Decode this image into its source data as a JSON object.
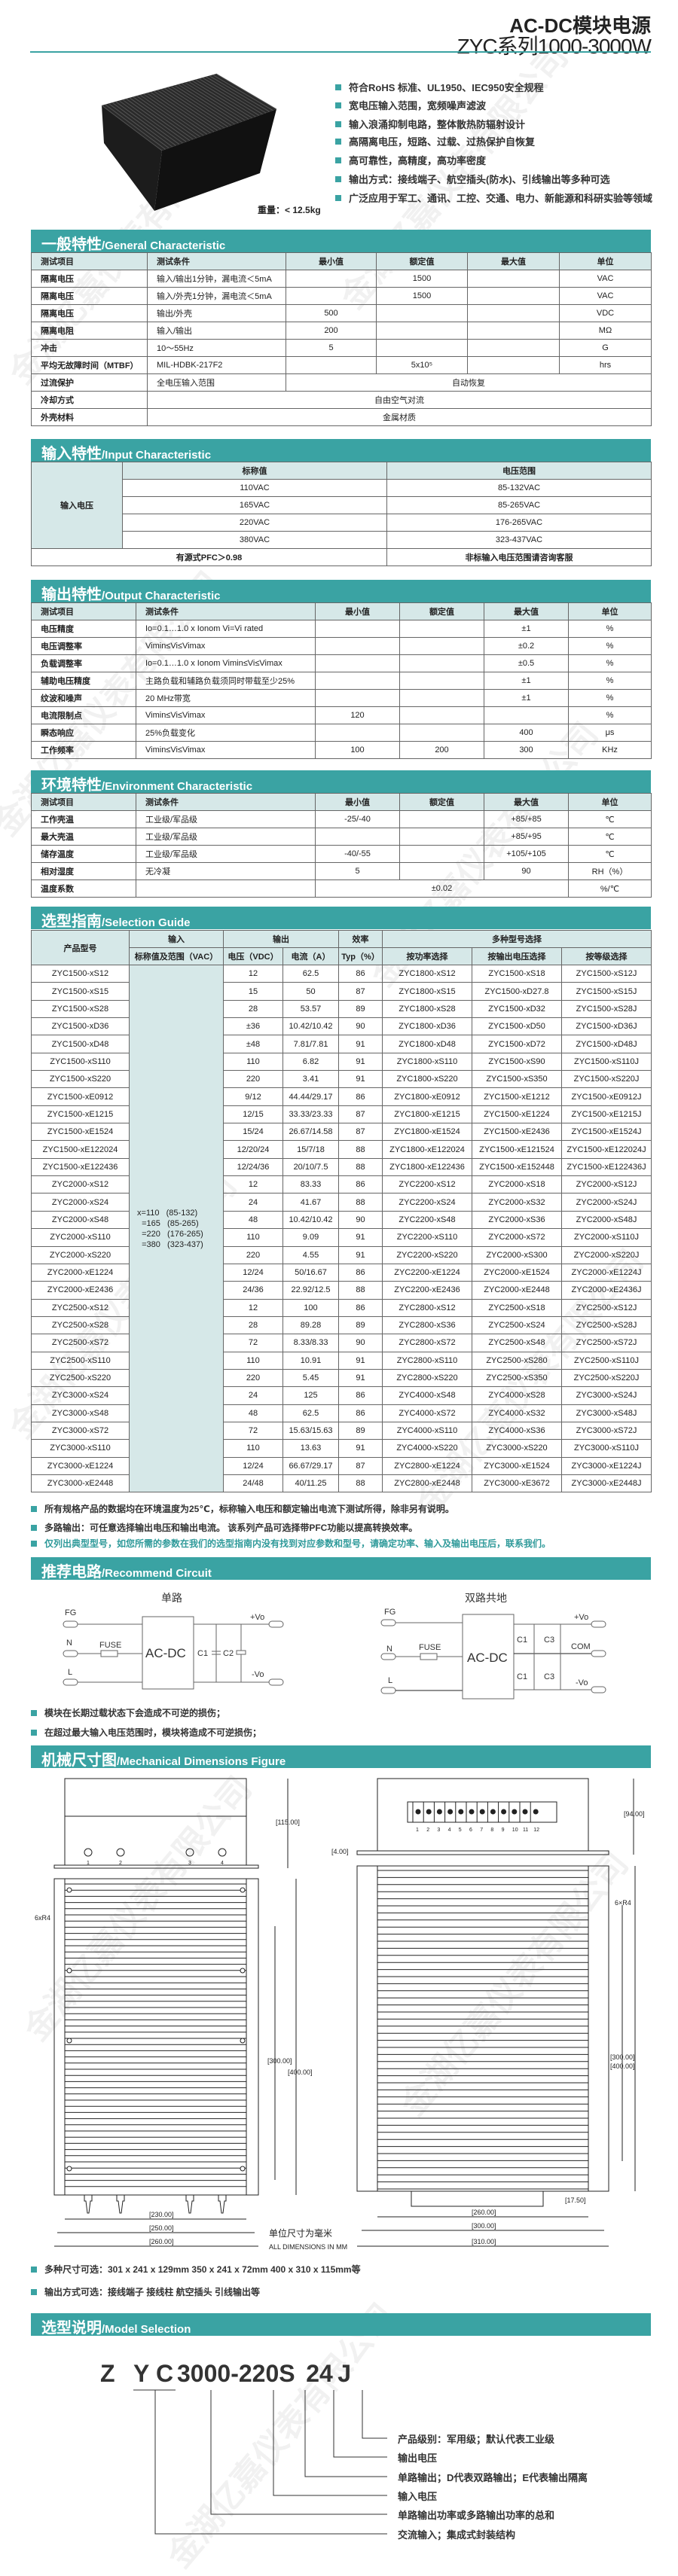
{
  "watermark": "金湖亿嘉仪表有限公司",
  "header": {
    "title": "AC-DC模块电源",
    "subtitle": "ZYC系列1000-3000W"
  },
  "colors": {
    "accent": "#3aa3a3",
    "header_fill": "#d6e8e8"
  },
  "product": {
    "weight": "重量：< 12.5kg",
    "image_icon": "power-module-heatsink-photo"
  },
  "features": [
    "符合RoHS 标准、UL1950、IEC950安全规程",
    "宽电压输入范围，宽频噪声滤波",
    "输入浪涌抑制电路，整体散热防辐射设计",
    "高隔离电压，短路、过载、过热保护自恢复",
    "高可靠性，高精度，高功率密度",
    "输出方式：接线端子、航空插头(防水)、引线输出等多种可选",
    "广泛应用于军工、通讯、工控、交通、电力、新能源和科研实验等领域"
  ],
  "general": {
    "zh": "一般特性",
    "en": "/General Characteristic",
    "columns": [
      "测试项目",
      "测试条件",
      "最小值",
      "额定值",
      "最大值",
      "单位"
    ],
    "rows": [
      [
        "隔离电压",
        "输入/输出1分钟，漏电流＜5mA",
        "",
        "1500",
        "",
        "VAC"
      ],
      [
        "隔离电压",
        "输入/外壳1分钟，漏电流＜5mA",
        "",
        "1500",
        "",
        "VAC"
      ],
      [
        "隔离电压",
        "输出/外壳",
        "500",
        "",
        "",
        "VDC"
      ],
      [
        "隔离电阻",
        "输入/输出",
        "200",
        "",
        "",
        "MΩ"
      ],
      [
        "冲击",
        "10～55Hz",
        "5",
        "",
        "",
        "G"
      ],
      [
        "平均无故障时间（MTBF）",
        "MIL-HDBK-217F2",
        "",
        "5x10⁵",
        "",
        "hrs"
      ],
      [
        "过流保护",
        "全电压输入范围",
        "自动恢复"
      ],
      [
        "冷却方式",
        "自由空气对流"
      ],
      [
        "外壳材料",
        "金属材质"
      ]
    ]
  },
  "input": {
    "zh": "输入特性",
    "en": "/Input Characteristic",
    "row_label": "输入电压",
    "columns": [
      "标称值",
      "电压范围"
    ],
    "rows": [
      [
        "110VAC",
        "85-132VAC"
      ],
      [
        "165VAC",
        "85-265VAC"
      ],
      [
        "220VAC",
        "176-265VAC"
      ],
      [
        "380VAC",
        "323-437VAC"
      ]
    ],
    "footer": [
      "有源式PFC＞0.98",
      "非标输入电压范围请咨询客服"
    ]
  },
  "output": {
    "zh": "输出特性",
    "en": "/Output Characteristic",
    "columns": [
      "测试项目",
      "测试条件",
      "最小值",
      "额定值",
      "最大值",
      "单位"
    ],
    "rows": [
      [
        "电压精度",
        "Io=0.1…1.0 x Ionom Vi=Vi rated",
        "",
        "",
        "±1",
        "%"
      ],
      [
        "电压调整率",
        "Vimin≤Vi≤Vimax",
        "",
        "",
        "±0.2",
        "%"
      ],
      [
        "负载调整率",
        "Io=0.1…1.0 x Ionom Vimin≤Vi≤Vimax",
        "",
        "",
        "±0.5",
        "%"
      ],
      [
        "辅助电压精度",
        "主路负载和辅路负载须同时带载至少25%",
        "",
        "",
        "±1",
        "%"
      ],
      [
        "纹波和噪声",
        "20 MHz带宽",
        "",
        "",
        "±1",
        "%"
      ],
      [
        "电流限制点",
        "Vimin≤Vi≤Vimax",
        "120",
        "",
        "",
        "%"
      ],
      [
        "瞬态响应",
        "25%负载变化",
        "",
        "",
        "400",
        "μs"
      ],
      [
        "工作频率",
        "Vimin≤Vi≤Vimax",
        "100",
        "200",
        "300",
        "KHz"
      ]
    ]
  },
  "environment": {
    "zh": "环境特性",
    "en": "/Environment Characteristic",
    "columns": [
      "测试项目",
      "测试条件",
      "最小值",
      "额定值",
      "最大值",
      "单位"
    ],
    "rows": [
      [
        "工作壳温",
        "工业级/军品级",
        "-25/-40",
        "",
        "+85/+85",
        "℃"
      ],
      [
        "最大壳温",
        "工业级/军品级",
        "",
        "",
        "+85/+95",
        "℃"
      ],
      [
        "储存温度",
        "工业级/军品级",
        "-40/-55",
        "",
        "+105/+105",
        "℃"
      ],
      [
        "相对湿度",
        "无冷凝",
        "5",
        "",
        "90",
        "RH（%）"
      ],
      [
        "温度系数",
        "",
        "±0.02",
        "%/℃"
      ]
    ]
  },
  "selection": {
    "zh": "选型指南",
    "en": "/Selection Guide",
    "head1": [
      "产品型号",
      "输入",
      "输出",
      "效率",
      "多种型号选择"
    ],
    "head2": [
      "标称值及范围（VAC）",
      "电压（VDC）",
      "电流（A）",
      "Typ（%）",
      "按功率选择",
      "按输出电压选择",
      "按等级选择"
    ],
    "input_range": "x=110   (85-132)\n  =165   (85-265)\n  =220   (176-265)\n  =380   (323-437)",
    "rows": [
      [
        "ZYC1500-xS12",
        "12",
        "62.5",
        "86",
        "ZYC1800-xS12",
        "ZYC1500-xS18",
        "ZYC1500-xS12J"
      ],
      [
        "ZYC1500-xS15",
        "15",
        "50",
        "87",
        "ZYC1800-xS15",
        "ZYC1500-xD27.8",
        "ZYC1500-xS15J"
      ],
      [
        "ZYC1500-xS28",
        "28",
        "53.57",
        "89",
        "ZYC1800-xS28",
        "ZYC1500-xD32",
        "ZYC1500-xS28J"
      ],
      [
        "ZYC1500-xD36",
        "±36",
        "10.42/10.42",
        "90",
        "ZYC1800-xD36",
        "ZYC1500-xD50",
        "ZYC1500-xD36J"
      ],
      [
        "ZYC1500-xD48",
        "±48",
        "7.81/7.81",
        "91",
        "ZYC1800-xD48",
        "ZYC1500-xD72",
        "ZYC1500-xD48J"
      ],
      [
        "ZYC1500-xS110",
        "110",
        "6.82",
        "91",
        "ZYC1800-xS110",
        "ZYC1500-xS90",
        "ZYC1500-xS110J"
      ],
      [
        "ZYC1500-xS220",
        "220",
        "3.41",
        "91",
        "ZYC1800-xS220",
        "ZYC1500-xS350",
        "ZYC1500-xS220J"
      ],
      [
        "ZYC1500-xE0912",
        "9/12",
        "44.44/29.17",
        "86",
        "ZYC1800-xE0912",
        "ZYC1500-xE1212",
        "ZYC1500-xE0912J"
      ],
      [
        "ZYC1500-xE1215",
        "12/15",
        "33.33/23.33",
        "87",
        "ZYC1800-xE1215",
        "ZYC1500-xE1224",
        "ZYC1500-xE1215J"
      ],
      [
        "ZYC1500-xE1524",
        "15/24",
        "26.67/14.58",
        "87",
        "ZYC1800-xE1524",
        "ZYC1500-xE2436",
        "ZYC1500-xE1524J"
      ],
      [
        "ZYC1500-xE122024",
        "12/20/24",
        "15/7/18",
        "88",
        "ZYC1800-xE122024",
        "ZYC1500-xE121524",
        "ZYC1500-xE122024J"
      ],
      [
        "ZYC1500-xE122436",
        "12/24/36",
        "20/10/7.5",
        "88",
        "ZYC1800-xE122436",
        "ZYC1500-xE152448",
        "ZYC1500-xE122436J"
      ],
      [
        "ZYC2000-xS12",
        "12",
        "83.33",
        "86",
        "ZYC2200-xS12",
        "ZYC2000-xS18",
        "ZYC2000-xS12J"
      ],
      [
        "ZYC2000-xS24",
        "24",
        "41.67",
        "88",
        "ZYC2200-xS24",
        "ZYC2000-xS32",
        "ZYC2000-xS24J"
      ],
      [
        "ZYC2000-xS48",
        "48",
        "10.42/10.42",
        "90",
        "ZYC2200-xS48",
        "ZYC2000-xS36",
        "ZYC2000-xS48J"
      ],
      [
        "ZYC2000-xS110",
        "110",
        "9.09",
        "91",
        "ZYC2200-xS110",
        "ZYC2000-xS72",
        "ZYC2000-xS110J"
      ],
      [
        "ZYC2000-xS220",
        "220",
        "4.55",
        "91",
        "ZYC2200-xS220",
        "ZYC2000-xS300",
        "ZYC2000-xS220J"
      ],
      [
        "ZYC2000-xE1224",
        "12/24",
        "50/16.67",
        "86",
        "ZYC2200-xE1224",
        "ZYC2000-xE1524",
        "ZYC2000-xE1224J"
      ],
      [
        "ZYC2000-xE2436",
        "24/36",
        "22.92/12.5",
        "88",
        "ZYC2200-xE2436",
        "ZYC2000-xE2448",
        "ZYC2000-xE2436J"
      ],
      [
        "ZYC2500-xS12",
        "12",
        "100",
        "86",
        "ZYC2800-xS12",
        "ZYC2500-xS18",
        "ZYC2500-xS12J"
      ],
      [
        "ZYC2500-xS28",
        "28",
        "89.28",
        "89",
        "ZYC2800-xS36",
        "ZYC2500-xS24",
        "ZYC2500-xS28J"
      ],
      [
        "ZYC2500-xS72",
        "72",
        "8.33/8.33",
        "90",
        "ZYC2800-xS72",
        "ZYC2500-xS48",
        "ZYC2500-xS72J"
      ],
      [
        "ZYC2500-xS110",
        "110",
        "10.91",
        "91",
        "ZYC2800-xS110",
        "ZYC2500-xS280",
        "ZYC2500-xS110J"
      ],
      [
        "ZYC2500-xS220",
        "220",
        "5.45",
        "91",
        "ZYC2800-xS220",
        "ZYC2500-xS350",
        "ZYC2500-xS220J"
      ],
      [
        "ZYC3000-xS24",
        "24",
        "125",
        "86",
        "ZYC4000-xS48",
        "ZYC4000-xS28",
        "ZYC3000-xS24J"
      ],
      [
        "ZYC3000-xS48",
        "48",
        "62.5",
        "86",
        "ZYC4000-xS72",
        "ZYC4000-xS32",
        "ZYC3000-xS48J"
      ],
      [
        "ZYC3000-xS72",
        "72",
        "15.63/15.63",
        "89",
        "ZYC4000-xS110",
        "ZYC4000-xS36",
        "ZYC3000-xS72J"
      ],
      [
        "ZYC3000-xS110",
        "110",
        "13.63",
        "91",
        "ZYC4000-xS220",
        "ZYC3000-xS220",
        "ZYC3000-xS110J"
      ],
      [
        "ZYC3000-xE1224",
        "12/24",
        "66.67/29.17",
        "87",
        "ZYC2800-xE1224",
        "ZYC3000-xE1524",
        "ZYC3000-xE1224J"
      ],
      [
        "ZYC3000-xE2448",
        "24/48",
        "40/11.25",
        "88",
        "ZYC2800-xE2448",
        "ZYC3000-xE3672",
        "ZYC3000-xE2448J"
      ]
    ],
    "notes": [
      "所有规格产品的数据均在环境温度为25℃，标称输入电压和额定输出电流下测试所得，除非另有说明。",
      "多路输出：可任意选择输出电压和输出电流。        该系列产品可选择带PFC功能以提高转换效率。",
      "仅列出典型型号，如您所需的参数在我们的选型指南内没有找到对应参数和型号，请确定功率、输入及输出电压后，联系我们。"
    ]
  },
  "circuit": {
    "zh": "推荐电路",
    "en": "/Recommend Circuit",
    "single": {
      "title": "单路",
      "fg": "FG",
      "n": "N",
      "l": "L",
      "fuse": "FUSE",
      "module": "AC-DC",
      "c1": "C1",
      "c2": "C2",
      "vplus": "+Vo",
      "vminus": "-Vo"
    },
    "dual": {
      "title": "双路共地",
      "fg": "FG",
      "n": "N",
      "l": "L",
      "fuse": "FUSE",
      "module": "AC-DC",
      "c1": "C1",
      "c3": "C3",
      "vplus": "+Vo",
      "com": "COM",
      "vminus": "-Vo"
    },
    "notes": [
      "模块在长期过载状态下会造成不可逆的损伤；",
      "在超过最大输入电压范围时，模块将造成不可逆损伤；"
    ]
  },
  "mechanical": {
    "zh": "机械尺寸图",
    "en": "/Mechanical Dimensions Figure",
    "left": {
      "height": "[115.00]",
      "ports": [
        "1",
        "2",
        "3",
        "4"
      ],
      "radius": "6xR4",
      "hole_pitch": "[300.00]",
      "length": "[400.00]",
      "w1": "[230.00]",
      "w2": "[250.00]",
      "w3": "[260.00]"
    },
    "right": {
      "height": "[94.00]",
      "plate": "[4.00]",
      "terminals": [
        "1",
        "2",
        "3",
        "4",
        "5",
        "6",
        "7",
        "8",
        "9",
        "10",
        "11",
        "12"
      ],
      "radius": "6×R4",
      "hole_pitch": "[300.00]",
      "length": "[400.00]",
      "term_depth": "[17.50]",
      "w1": "[260.00]",
      "w2": "[300.00]",
      "w3": "[310.00]"
    },
    "unit_zh": "单位尺寸为毫米",
    "unit_en": "ALL DIMENSIONS IN MM",
    "notes": [
      "多种尺寸可选：301 x 241 x 129mm  350 x 241 x 72mm   400 x 310 x 115mm等",
      "输出方式可选：接线端子 接线柱 航空插头 引线输出等"
    ]
  },
  "model": {
    "zh": "选型说明",
    "en": "/Model Selection",
    "code": [
      "Z",
      "Y",
      "C",
      "3000",
      "-220",
      "S",
      "24",
      "J"
    ],
    "labels": [
      "产品级别：军用级；默认代表工业级",
      "输出电压",
      "单路输出；D代表双路输出；E代表输出隔离",
      "输入电压",
      "单路输出功率或多路输出功率的总和",
      "交流输入；集成式封装结构"
    ]
  }
}
